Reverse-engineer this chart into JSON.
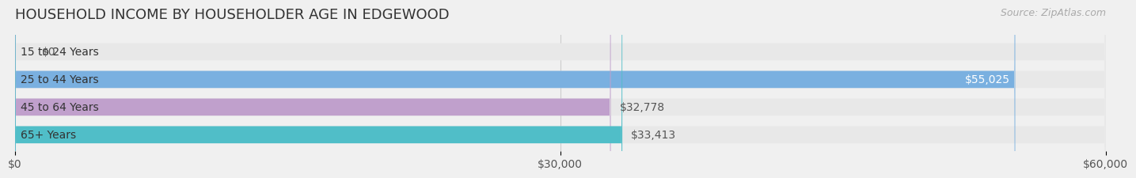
{
  "title": "HOUSEHOLD INCOME BY HOUSEHOLDER AGE IN EDGEWOOD",
  "source": "Source: ZipAtlas.com",
  "categories": [
    "15 to 24 Years",
    "25 to 44 Years",
    "45 to 64 Years",
    "65+ Years"
  ],
  "values": [
    0,
    55025,
    32778,
    33413
  ],
  "bar_colors": [
    "#f0a0a8",
    "#7ab0e0",
    "#c0a0cc",
    "#50bec8"
  ],
  "label_colors": [
    "#555555",
    "#ffffff",
    "#555555",
    "#555555"
  ],
  "value_labels": [
    "$0",
    "$55,025",
    "$32,778",
    "$33,413"
  ],
  "xlim": [
    0,
    60000
  ],
  "xticks": [
    0,
    30000,
    60000
  ],
  "xtick_labels": [
    "$0",
    "$30,000",
    "$60,000"
  ],
  "background_color": "#f0f0f0",
  "bar_background_color": "#e8e8e8",
  "title_fontsize": 13,
  "source_fontsize": 9,
  "label_fontsize": 10,
  "value_fontsize": 10,
  "tick_fontsize": 10,
  "bar_height": 0.62,
  "fig_width": 14.06,
  "fig_height": 2.33
}
